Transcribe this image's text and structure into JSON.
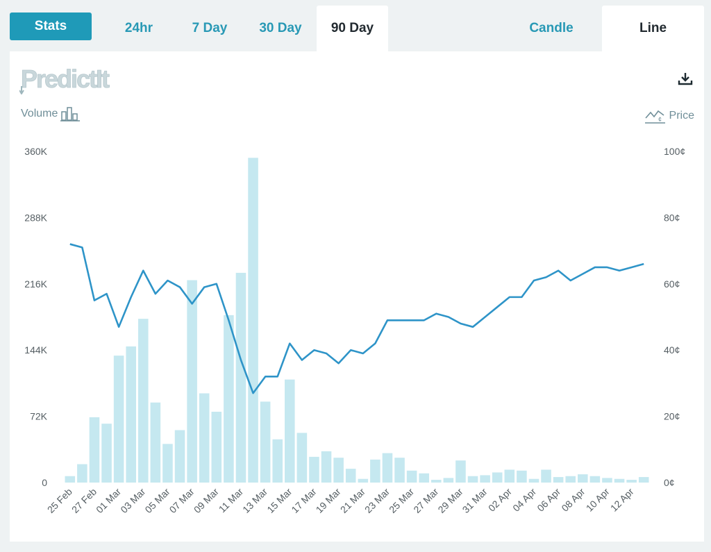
{
  "toolbar": {
    "stats_label": "Stats",
    "tabs": [
      "24hr",
      "7 Day",
      "30 Day",
      "90 Day"
    ],
    "active_tab": "90 Day",
    "view_tabs": [
      "Candle",
      "Line"
    ],
    "active_view": "Line"
  },
  "logo_text": "PredictIt",
  "legend": {
    "volume_label": "Volume",
    "price_label": "Price"
  },
  "colors": {
    "accent": "#1f9ab8",
    "line": "#2e94c8",
    "bar": "#c5e8f0"
  },
  "chart_data": {
    "type": "bar+line",
    "x": [
      "25 Feb",
      "26 Feb",
      "27 Feb",
      "28 Feb",
      "01 Mar",
      "02 Mar",
      "03 Mar",
      "04 Mar",
      "05 Mar",
      "06 Mar",
      "07 Mar",
      "08 Mar",
      "09 Mar",
      "10 Mar",
      "11 Mar",
      "12 Mar",
      "13 Mar",
      "14 Mar",
      "15 Mar",
      "16 Mar",
      "17 Mar",
      "18 Mar",
      "19 Mar",
      "20 Mar",
      "21 Mar",
      "22 Mar",
      "23 Mar",
      "24 Mar",
      "25 Mar",
      "26 Mar",
      "27 Mar",
      "28 Mar",
      "29 Mar",
      "30 Mar",
      "31 Mar",
      "01 Apr",
      "02 Apr",
      "03 Apr",
      "04 Apr",
      "05 Apr",
      "06 Apr",
      "07 Apr",
      "08 Apr",
      "09 Apr",
      "10 Apr",
      "11 Apr",
      "12 Apr",
      "13 Apr"
    ],
    "x_tick_labels": [
      "25 Feb",
      "27 Feb",
      "01 Mar",
      "03 Mar",
      "05 Mar",
      "07 Mar",
      "09 Mar",
      "11 Mar",
      "13 Mar",
      "15 Mar",
      "17 Mar",
      "19 Mar",
      "21 Mar",
      "23 Mar",
      "25 Mar",
      "27 Mar",
      "29 Mar",
      "31 Mar",
      "02 Apr",
      "04 Apr",
      "06 Apr",
      "08 Apr",
      "10 Apr",
      "12 Apr"
    ],
    "volume": [
      7000,
      20000,
      71000,
      64000,
      138000,
      148000,
      178000,
      87000,
      42000,
      57000,
      220000,
      97000,
      77000,
      182000,
      228000,
      353000,
      88000,
      47000,
      112000,
      54000,
      28000,
      34000,
      27000,
      15000,
      4000,
      25000,
      32000,
      27000,
      13000,
      10000,
      3000,
      5000,
      24000,
      7000,
      8000,
      11000,
      14000,
      13000,
      4000,
      14000,
      6000,
      7000,
      9000,
      7000,
      5000,
      4000,
      3000,
      6000
    ],
    "price": [
      72,
      71,
      55,
      57,
      47,
      56,
      64,
      57,
      61,
      59,
      54,
      59,
      60,
      49,
      37,
      27,
      32,
      32,
      42,
      37,
      40,
      39,
      36,
      40,
      39,
      42,
      49,
      49,
      49,
      49,
      51,
      50,
      48,
      47,
      50,
      53,
      56,
      56,
      61,
      62,
      64,
      61,
      63,
      65,
      65,
      64,
      65,
      66
    ],
    "y_left": {
      "ticks": [
        "0",
        "72K",
        "144K",
        "216K",
        "288K",
        "360K"
      ],
      "lim": [
        0,
        360000
      ]
    },
    "y_right": {
      "ticks": [
        "0¢",
        "20¢",
        "40¢",
        "60¢",
        "80¢",
        "100¢"
      ],
      "lim": [
        0,
        100
      ]
    },
    "grid": false
  }
}
